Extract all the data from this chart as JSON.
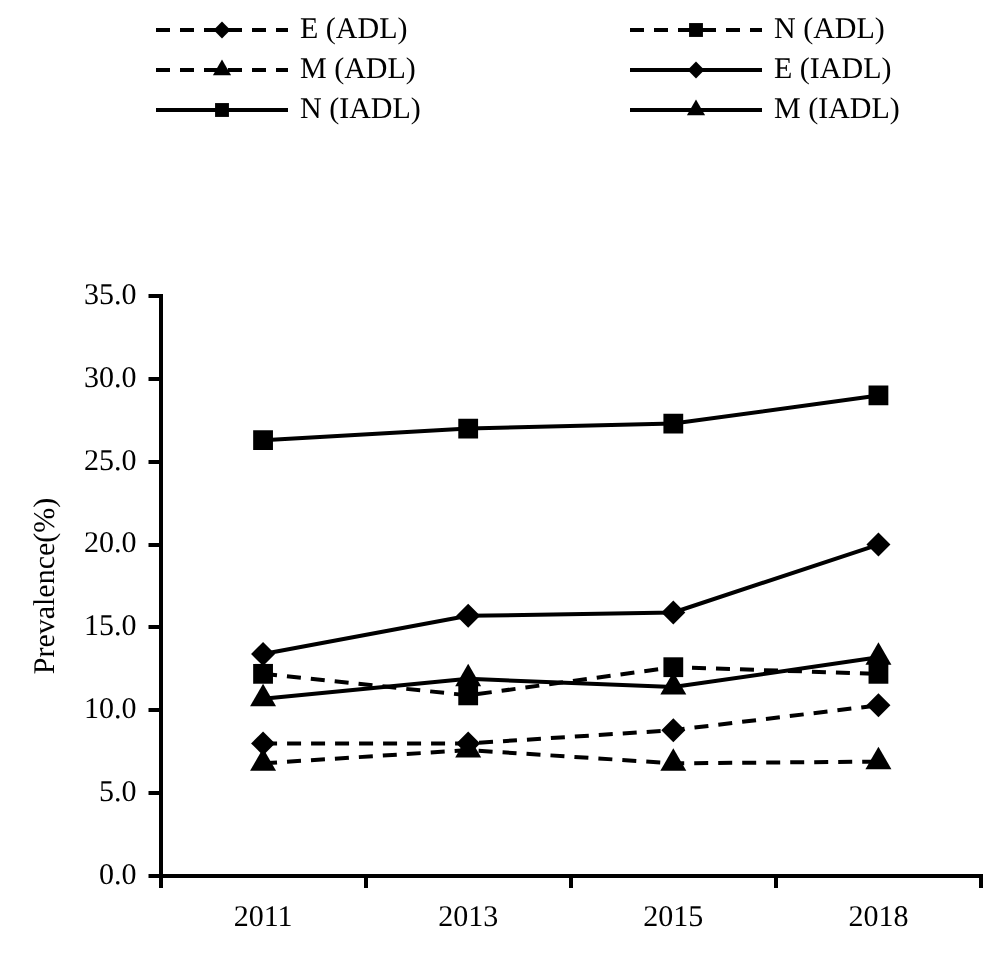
{
  "chart_data": {
    "type": "line",
    "ylabel": "Prevalence(%)",
    "categories": [
      "2011",
      "2013",
      "2015",
      "2018"
    ],
    "series": [
      {
        "name": "E (ADL)",
        "color": "#000000",
        "marker": "diamond",
        "line_style": "dashed",
        "values": [
          8.0,
          8.0,
          8.8,
          10.3
        ]
      },
      {
        "name": "N (ADL)",
        "color": "#000000",
        "marker": "square",
        "line_style": "dashed",
        "values": [
          12.2,
          10.9,
          12.6,
          12.2
        ]
      },
      {
        "name": "M (ADL)",
        "color": "#000000",
        "marker": "triangle",
        "line_style": "dashed",
        "values": [
          6.8,
          7.6,
          6.8,
          6.9
        ]
      },
      {
        "name": "E (IADL)",
        "color": "#000000",
        "marker": "diamond",
        "line_style": "solid",
        "values": [
          13.4,
          15.7,
          15.9,
          20.0
        ]
      },
      {
        "name": "N (IADL)",
        "color": "#000000",
        "marker": "square",
        "line_style": "solid",
        "values": [
          26.3,
          27.0,
          27.3,
          29.0
        ]
      },
      {
        "name": "M (IADL)",
        "color": "#000000",
        "marker": "triangle",
        "line_style": "solid",
        "values": [
          10.7,
          11.9,
          11.4,
          13.2
        ]
      }
    ],
    "ylim": [
      0,
      35
    ],
    "yticks": [
      {
        "value": 0,
        "label": "0.0"
      },
      {
        "value": 5,
        "label": "5.0"
      },
      {
        "value": 10,
        "label": "10.0"
      },
      {
        "value": 15,
        "label": "15.0"
      },
      {
        "value": 20,
        "label": "20.0"
      },
      {
        "value": 25,
        "label": "25.0"
      },
      {
        "value": 30,
        "label": "30.0"
      },
      {
        "value": 35,
        "label": "35.0"
      }
    ],
    "grid": false,
    "legend": "top"
  }
}
